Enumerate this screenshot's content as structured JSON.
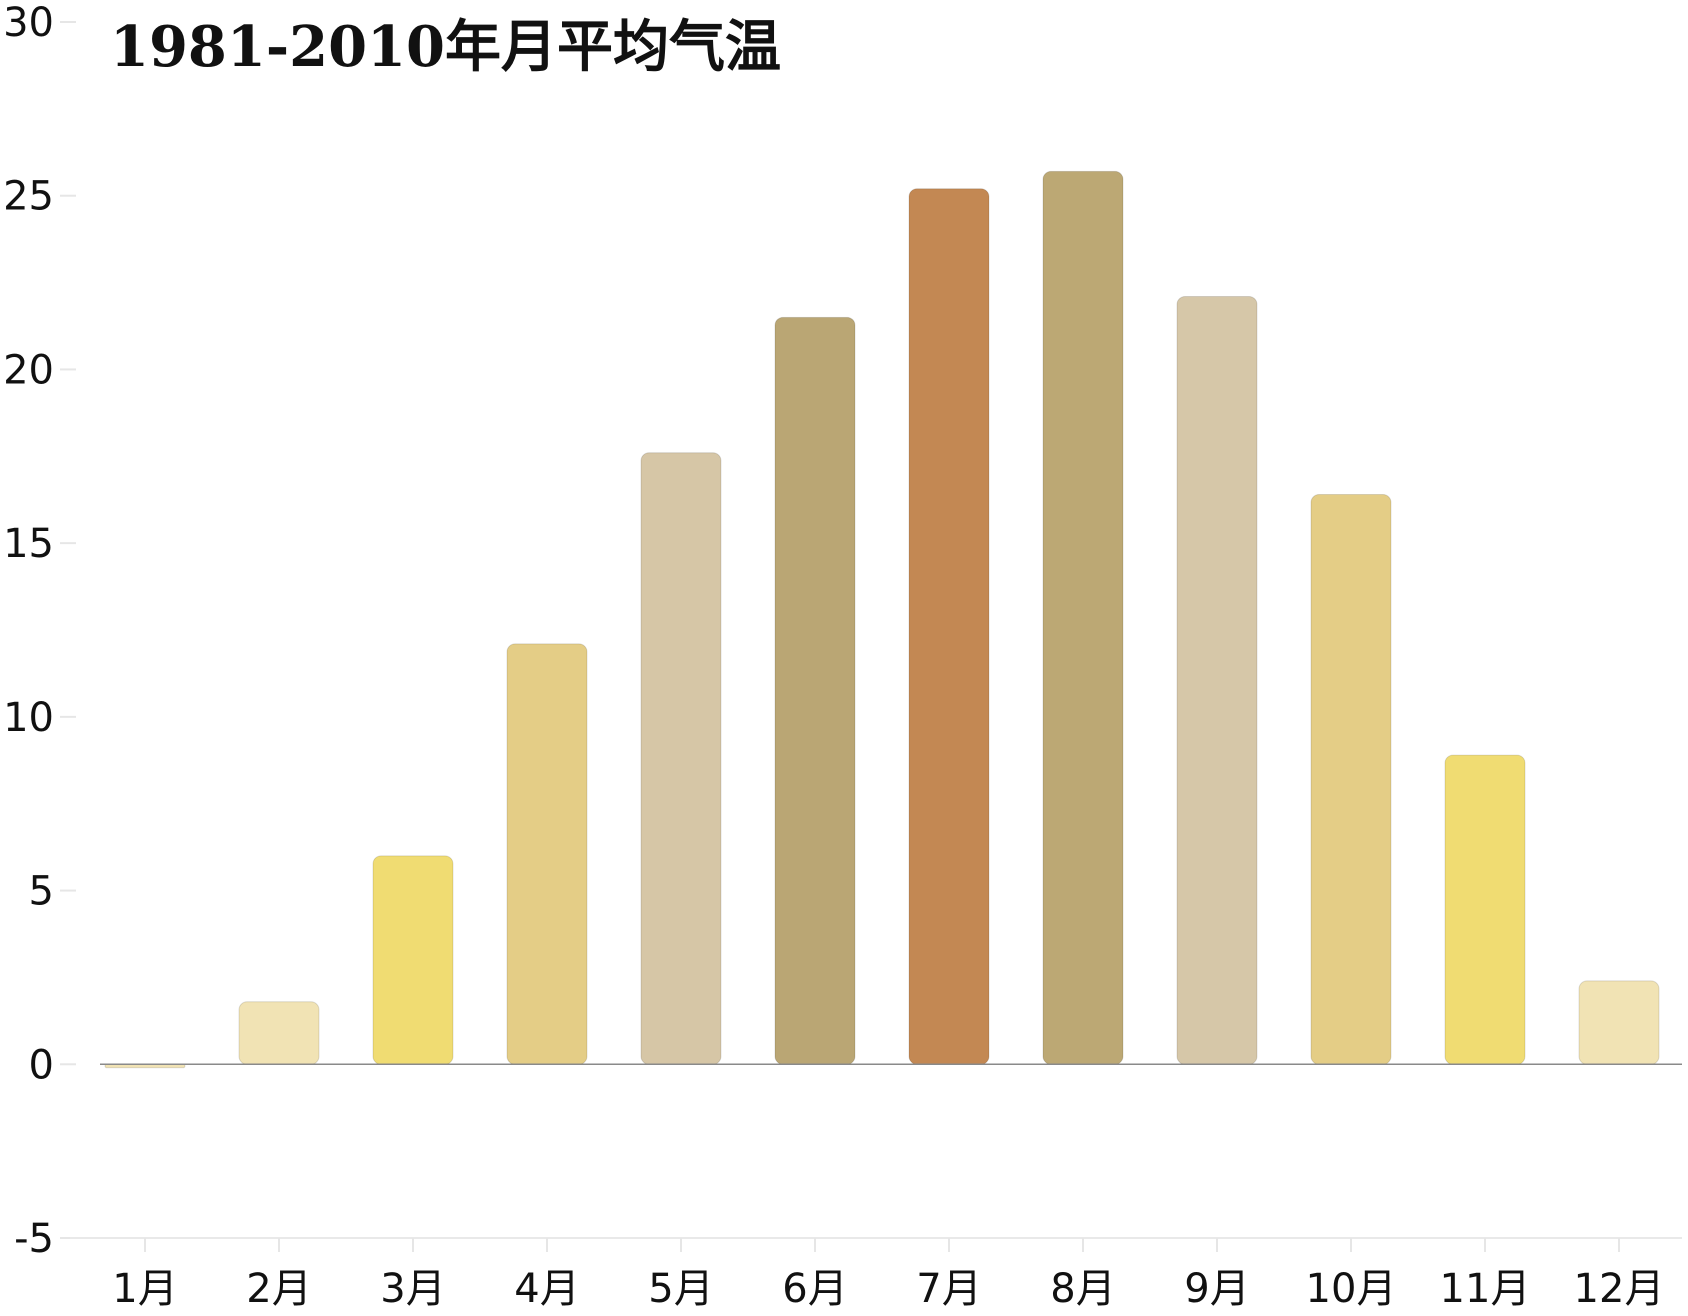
{
  "chart_data": {
    "type": "bar",
    "title": "1981-2010年月平均气温",
    "xlabel": "",
    "ylabel": "",
    "ylim": [
      -5,
      30
    ],
    "yticks": [
      "30",
      "25",
      "20",
      "15",
      "10",
      "5",
      "0",
      "-5"
    ],
    "ytick_values": [
      30,
      25,
      20,
      15,
      10,
      5,
      0,
      -5
    ],
    "categories": [
      "1月",
      "2月",
      "3月",
      "4月",
      "5月",
      "6月",
      "7月",
      "8月",
      "9月",
      "10月",
      "11月",
      "12月"
    ],
    "values": [
      -0.1,
      1.8,
      6.0,
      12.1,
      17.6,
      21.5,
      25.2,
      25.7,
      22.1,
      16.4,
      8.9,
      2.4
    ],
    "colors": [
      "#f1e3b4",
      "#f1e3b4",
      "#f0dc72",
      "#e4cd86",
      "#d6c6a6",
      "#baa674",
      "#c38853",
      "#bca874",
      "#d6c7a8",
      "#e4cd86",
      "#f0dc72",
      "#f1e3b4"
    ],
    "grid": false,
    "legend": "none"
  }
}
